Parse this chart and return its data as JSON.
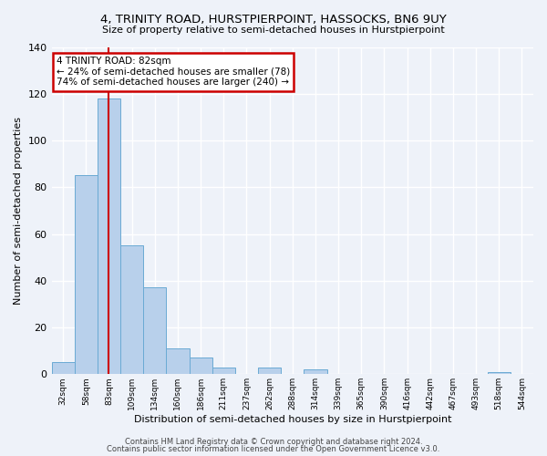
{
  "title": "4, TRINITY ROAD, HURSTPIERPOINT, HASSOCKS, BN6 9UY",
  "subtitle": "Size of property relative to semi-detached houses in Hurstpierpoint",
  "xlabel": "Distribution of semi-detached houses by size in Hurstpierpoint",
  "ylabel": "Number of semi-detached properties",
  "bin_labels": [
    "32sqm",
    "58sqm",
    "83sqm",
    "109sqm",
    "134sqm",
    "160sqm",
    "186sqm",
    "211sqm",
    "237sqm",
    "262sqm",
    "288sqm",
    "314sqm",
    "339sqm",
    "365sqm",
    "390sqm",
    "416sqm",
    "442sqm",
    "467sqm",
    "493sqm",
    "518sqm",
    "544sqm"
  ],
  "bar_values": [
    5,
    85,
    118,
    55,
    37,
    11,
    7,
    3,
    0,
    3,
    0,
    2,
    0,
    0,
    0,
    0,
    0,
    0,
    0,
    1,
    0
  ],
  "bar_color": "#b8d0eb",
  "bar_edge_color": "#6aaad4",
  "vline_x_index": 2,
  "vline_color": "#cc0000",
  "annotation_title": "4 TRINITY ROAD: 82sqm",
  "annotation_line1": "← 24% of semi-detached houses are smaller (78)",
  "annotation_line2": "74% of semi-detached houses are larger (240) →",
  "annotation_box_color": "#cc0000",
  "ylim": [
    0,
    140
  ],
  "yticks": [
    0,
    20,
    40,
    60,
    80,
    100,
    120,
    140
  ],
  "footer1": "Contains HM Land Registry data © Crown copyright and database right 2024.",
  "footer2": "Contains public sector information licensed under the Open Government Licence v3.0.",
  "background_color": "#eef2f9"
}
